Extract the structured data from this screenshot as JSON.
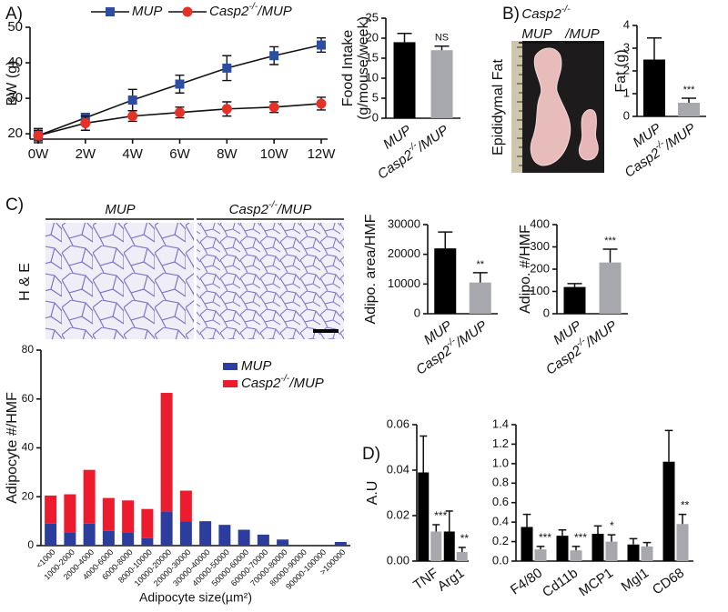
{
  "panels": {
    "A": "A)",
    "B": "B)",
    "C": "C)",
    "D": "D)"
  },
  "photo": {
    "title": "Casp2-/-",
    "labels": [
      "MUP",
      "/MUP"
    ],
    "side_label": "Epididymal Fat"
  },
  "histology": {
    "labels": [
      "MUP",
      "Casp2-/-/MUP"
    ],
    "stain": "H & E"
  },
  "chart_data": [
    {
      "type": "line",
      "ylabel": "BW (g)",
      "categories": [
        "0W",
        "2W",
        "4W",
        "6W",
        "8W",
        "10W",
        "12W"
      ],
      "ylim": [
        18.5,
        50
      ],
      "yticks": [
        20,
        30,
        40,
        50
      ],
      "series": [
        {
          "name": "MUP",
          "color": "#2b4ea2",
          "marker": "square",
          "values": [
            19.5,
            24.5,
            29.5,
            34,
            38.5,
            42,
            45
          ],
          "errors": [
            2,
            1.2,
            3,
            2.5,
            3.5,
            2.5,
            2
          ]
        },
        {
          "name": "Casp2-/-/MUP",
          "color": "#e53228",
          "marker": "circle",
          "values": [
            19.5,
            23,
            25,
            26,
            27,
            27.5,
            28.5
          ],
          "errors": [
            1.5,
            2,
            1.5,
            1.5,
            2,
            1.5,
            1.8
          ]
        }
      ]
    },
    {
      "type": "bar",
      "ylabel": [
        "Food Intake",
        "(g/mouse/week)"
      ],
      "categories": [
        "MUP",
        "Casp2-/-/MUP"
      ],
      "values": [
        19,
        17
      ],
      "errors": [
        2.2,
        1
      ],
      "colors": [
        "#000000",
        "#a7a7ae"
      ],
      "annotations": [
        null,
        "NS"
      ],
      "ylim": [
        0,
        25
      ],
      "yticks": [
        0,
        5,
        10,
        15,
        20,
        25
      ]
    },
    {
      "type": "bar",
      "ylabel": "Fat (g)",
      "categories": [
        "MUP",
        "Casp2-/-/MUP"
      ],
      "values": [
        2.5,
        0.6
      ],
      "errors": [
        0.95,
        0.2
      ],
      "colors": [
        "#000000",
        "#a7a7ae"
      ],
      "annotations": [
        null,
        "***"
      ],
      "ylim": [
        0,
        4
      ],
      "yticks": [
        0,
        1,
        2,
        3,
        4
      ]
    },
    {
      "type": "bar",
      "ylabel": "Adipo. area/HMF",
      "categories": [
        "MUP",
        "Casp2-/-/MUP"
      ],
      "values": [
        22000,
        10500
      ],
      "errors": [
        5500,
        3300
      ],
      "colors": [
        "#000000",
        "#a7a7ae"
      ],
      "annotations": [
        null,
        "**"
      ],
      "ylim": [
        0,
        30000
      ],
      "yticks": [
        0,
        10000,
        20000,
        30000
      ]
    },
    {
      "type": "bar",
      "ylabel": "Adipo. #/HMF",
      "categories": [
        "MUP",
        "Casp2-/-/MUP"
      ],
      "values": [
        120,
        230
      ],
      "errors": [
        15,
        60
      ],
      "colors": [
        "#000000",
        "#a7a7ae"
      ],
      "annotations": [
        null,
        "***"
      ],
      "ylim": [
        0,
        400
      ],
      "yticks": [
        0,
        100,
        200,
        300,
        400
      ]
    },
    {
      "type": "stacked_bar",
      "ylabel": "Adipocyte #/HMF",
      "xlabel": "Adipocyte size(µm²)",
      "categories": [
        "<1000",
        "1000-2000",
        "2000-4000",
        "4000-6000",
        "6000-8000",
        "8000-10000",
        "10000-20000",
        "20000-30000",
        "30000-40000",
        "40000-50000",
        "50000-60000",
        "60000-70000",
        "70000-80000",
        "80000-90000",
        "90000-100000",
        ">100000"
      ],
      "ylim": [
        0,
        80
      ],
      "yticks": [
        0,
        20,
        40,
        60,
        80
      ],
      "series": [
        {
          "name": "MUP",
          "color": "#2d3d9e",
          "values": [
            9,
            5.5,
            9,
            6,
            5.5,
            3,
            14,
            10,
            10,
            8.5,
            6.5,
            4.5,
            2.5,
            0,
            0,
            1.5
          ]
        },
        {
          "name": "Casp2-/-/MUP",
          "color": "#ec1c2e",
          "values": [
            11.5,
            15.5,
            22,
            13.5,
            13,
            12,
            48.5,
            12.5,
            0,
            0,
            0,
            0,
            0,
            0,
            0,
            0
          ]
        }
      ]
    },
    {
      "type": "grouped_bar",
      "ylabel": "A.U",
      "categories": [
        "TNF",
        "Arg1"
      ],
      "ylim": [
        0,
        0.06
      ],
      "yticks": [
        {
          "value": 0,
          "label": "0.00"
        },
        0.02,
        0.04,
        0.06
      ],
      "series": [
        {
          "color": "#000000",
          "values": [
            0.039,
            0.013
          ],
          "errors": [
            0.016,
            0.009
          ]
        },
        {
          "color": "#a7a7ae",
          "values": [
            0.013,
            0.004
          ],
          "errors": [
            0.003,
            0.002
          ],
          "annotations": [
            "***",
            "**"
          ]
        }
      ]
    },
    {
      "type": "grouped_bar",
      "categories": [
        "F4/80",
        "Cd11b",
        "MCP1",
        "Mgl1",
        "CD68"
      ],
      "ylim": [
        0,
        1.4
      ],
      "yticks": [
        {
          "value": 0,
          "label": "0.0"
        },
        0.2,
        0.4,
        0.6,
        0.8,
        {
          "value": 1,
          "label": "1.0"
        },
        1.2,
        1.4
      ],
      "series": [
        {
          "color": "#000000",
          "values": [
            0.35,
            0.26,
            0.28,
            0.17,
            1.02
          ],
          "errors": [
            0.13,
            0.06,
            0.08,
            0.06,
            0.32
          ]
        },
        {
          "color": "#a7a7ae",
          "values": [
            0.12,
            0.11,
            0.2,
            0.15,
            0.38
          ],
          "errors": [
            0.03,
            0.04,
            0.07,
            0.04,
            0.1
          ],
          "annotations": [
            "***",
            "***",
            "*",
            null,
            "**"
          ]
        }
      ]
    }
  ]
}
